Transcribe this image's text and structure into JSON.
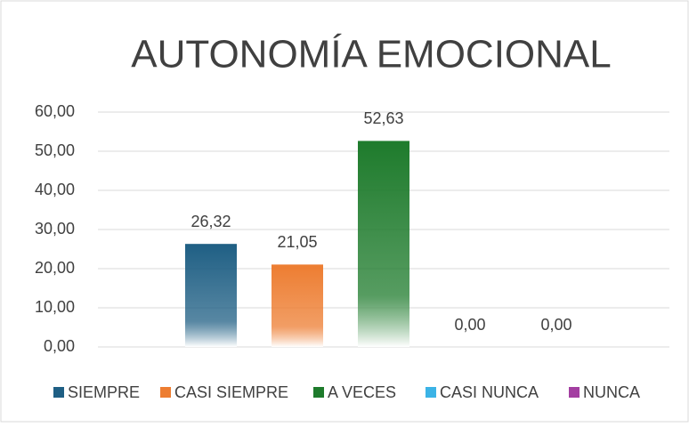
{
  "chart_data": {
    "type": "bar",
    "title": "AUTONOMÍA EMOCIONAL",
    "categories": [
      null
    ],
    "series": [
      {
        "name": "SIEMPRE",
        "color": "#1f5f84",
        "values": [
          26.32
        ],
        "value_labels": [
          "26,32"
        ]
      },
      {
        "name": "CASI SIEMPRE",
        "color": "#ed7d31",
        "values": [
          21.05
        ],
        "value_labels": [
          "21,05"
        ]
      },
      {
        "name": "A VECES",
        "color": "#1e7b2c",
        "values": [
          52.63
        ],
        "value_labels": [
          "52,63"
        ]
      },
      {
        "name": "CASI NUNCA",
        "color": "#3bb3e6",
        "values": [
          0
        ],
        "value_labels": [
          "0,00"
        ]
      },
      {
        "name": "NUNCA",
        "color": "#a33ea1",
        "values": [
          0
        ],
        "value_labels": [
          "0,00"
        ]
      }
    ],
    "ylim": [
      0,
      60
    ],
    "yticks": [
      {
        "value": 0,
        "label": "0,00"
      },
      {
        "value": 10,
        "label": "10,00"
      },
      {
        "value": 20,
        "label": "20,00"
      },
      {
        "value": 30,
        "label": "30,00"
      },
      {
        "value": 40,
        "label": "40,00"
      },
      {
        "value": 50,
        "label": "50,00"
      },
      {
        "value": 60,
        "label": "60,00"
      }
    ],
    "grid": true,
    "legend": "bottom"
  }
}
